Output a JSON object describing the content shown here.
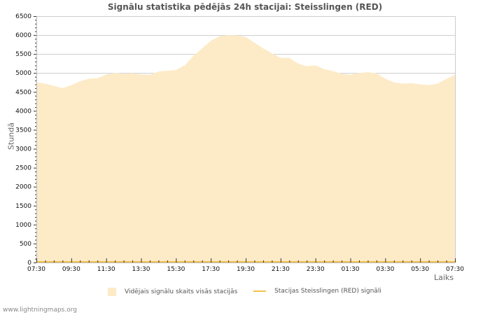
{
  "header": {
    "title": "Signālu statistika pēdējās 24h stacijai: Steisslingen (RED)"
  },
  "legend": {
    "items": [
      {
        "label": "Vidējais signālu skaits visās stacijās",
        "type": "area",
        "color": "#fdebc8"
      },
      {
        "label": "Stacijas Steisslingen (RED) signāli",
        "type": "line",
        "color": "#f2c14e"
      }
    ]
  },
  "footer": {
    "text": "www.lightningmaps.org"
  },
  "chart_data": {
    "type": "area",
    "title": "Signālu statistika pēdējās 24h stacijai: Steisslingen (RED)",
    "xlabel": "Laiks",
    "ylabel": "Stundā",
    "ylim": [
      0,
      6500
    ],
    "yticks": [
      0,
      500,
      1000,
      1500,
      2000,
      2500,
      3000,
      3500,
      4000,
      4500,
      5000,
      5500,
      6000,
      6500
    ],
    "xticks": [
      "07:30",
      "09:30",
      "11:30",
      "13:30",
      "15:30",
      "17:30",
      "19:30",
      "21:30",
      "23:30",
      "01:30",
      "03:30",
      "05:30",
      "07:30"
    ],
    "grid": true,
    "legend_position": "bottom",
    "x": [
      "07:30",
      "08:00",
      "08:30",
      "09:00",
      "09:30",
      "10:00",
      "10:30",
      "11:00",
      "11:30",
      "12:00",
      "12:30",
      "13:00",
      "13:30",
      "14:00",
      "14:30",
      "15:00",
      "15:30",
      "16:00",
      "16:30",
      "17:00",
      "17:30",
      "18:00",
      "18:30",
      "19:00",
      "19:30",
      "20:00",
      "20:30",
      "21:00",
      "21:30",
      "22:00",
      "22:30",
      "23:00",
      "23:30",
      "00:00",
      "00:30",
      "01:00",
      "01:30",
      "02:00",
      "02:30",
      "03:00",
      "03:30",
      "04:00",
      "04:30",
      "05:00",
      "05:30",
      "06:00",
      "06:30",
      "07:00",
      "07:30"
    ],
    "series": [
      {
        "name": "Vidējais signālu skaits visās stacijās",
        "type": "area",
        "color": "#fdebc8",
        "values": [
          4750,
          4720,
          4660,
          4600,
          4680,
          4780,
          4850,
          4860,
          4960,
          5000,
          4980,
          4990,
          4960,
          4950,
          5040,
          5060,
          5080,
          5200,
          5450,
          5650,
          5850,
          5970,
          6000,
          5990,
          5950,
          5800,
          5650,
          5520,
          5400,
          5400,
          5250,
          5180,
          5200,
          5100,
          5050,
          4980,
          4950,
          5000,
          5020,
          4990,
          4850,
          4750,
          4720,
          4730,
          4700,
          4680,
          4720,
          4840,
          4950
        ]
      },
      {
        "name": "Stacijas Steisslingen (RED) signāli",
        "type": "line",
        "color": "#f2c14e",
        "values": [
          0,
          0,
          0,
          0,
          0,
          0,
          0,
          0,
          0,
          0,
          0,
          0,
          0,
          0,
          0,
          0,
          0,
          0,
          0,
          0,
          0,
          0,
          0,
          0,
          0,
          0,
          0,
          0,
          0,
          0,
          0,
          0,
          0,
          0,
          0,
          0,
          0,
          0,
          0,
          0,
          0,
          0,
          0,
          0,
          0,
          0,
          0,
          0,
          0
        ]
      }
    ]
  }
}
